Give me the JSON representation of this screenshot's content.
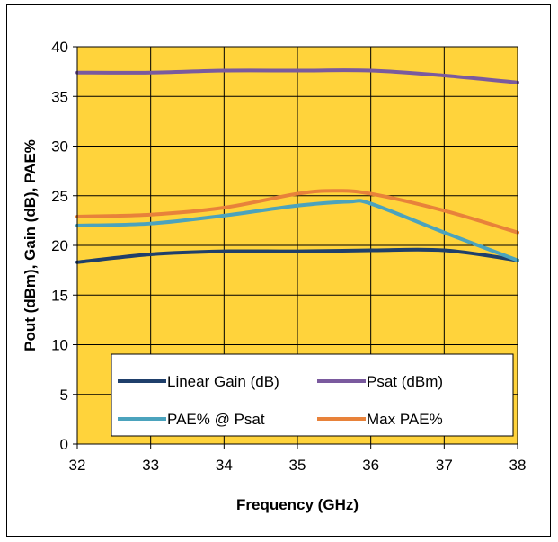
{
  "chart_data": {
    "type": "line",
    "title": "",
    "xlabel": "Frequency (GHz)",
    "ylabel": "Pout (dBm), Gain (dB), PAE%",
    "x": [
      32,
      33,
      34,
      35,
      36,
      37,
      38
    ],
    "xlim": [
      32,
      38
    ],
    "ylim": [
      0,
      40
    ],
    "xticks": [
      32,
      33,
      34,
      35,
      36,
      37,
      38
    ],
    "yticks": [
      0,
      5,
      10,
      15,
      20,
      25,
      30,
      35,
      40
    ],
    "grid": true,
    "plot_background": "#FFD33B",
    "legend_position": "bottom",
    "series": [
      {
        "name": "Linear Gain (dB)",
        "color": "#1F3F6B",
        "x": [
          32,
          33,
          34,
          35,
          36,
          37,
          38
        ],
        "values": [
          18.3,
          19.1,
          19.4,
          19.4,
          19.5,
          19.5,
          18.5
        ]
      },
      {
        "name": "Psat (dBm)",
        "color": "#7A5A9E",
        "x": [
          32,
          33,
          34,
          35,
          36,
          37,
          38
        ],
        "values": [
          37.4,
          37.4,
          37.6,
          37.6,
          37.6,
          37.1,
          36.4
        ]
      },
      {
        "name": "PAE% @ Psat",
        "color": "#4BA3BD",
        "x": [
          32,
          33,
          34,
          35,
          35.7,
          36,
          37,
          38
        ],
        "values": [
          22.0,
          22.2,
          23.0,
          24.0,
          24.4,
          24.2,
          21.3,
          18.5
        ]
      },
      {
        "name": "Max PAE%",
        "color": "#E8823A",
        "x": [
          32,
          33,
          34,
          35,
          35.5,
          36,
          37,
          38
        ],
        "values": [
          22.9,
          23.1,
          23.8,
          25.2,
          25.5,
          25.2,
          23.5,
          21.3
        ]
      }
    ]
  }
}
